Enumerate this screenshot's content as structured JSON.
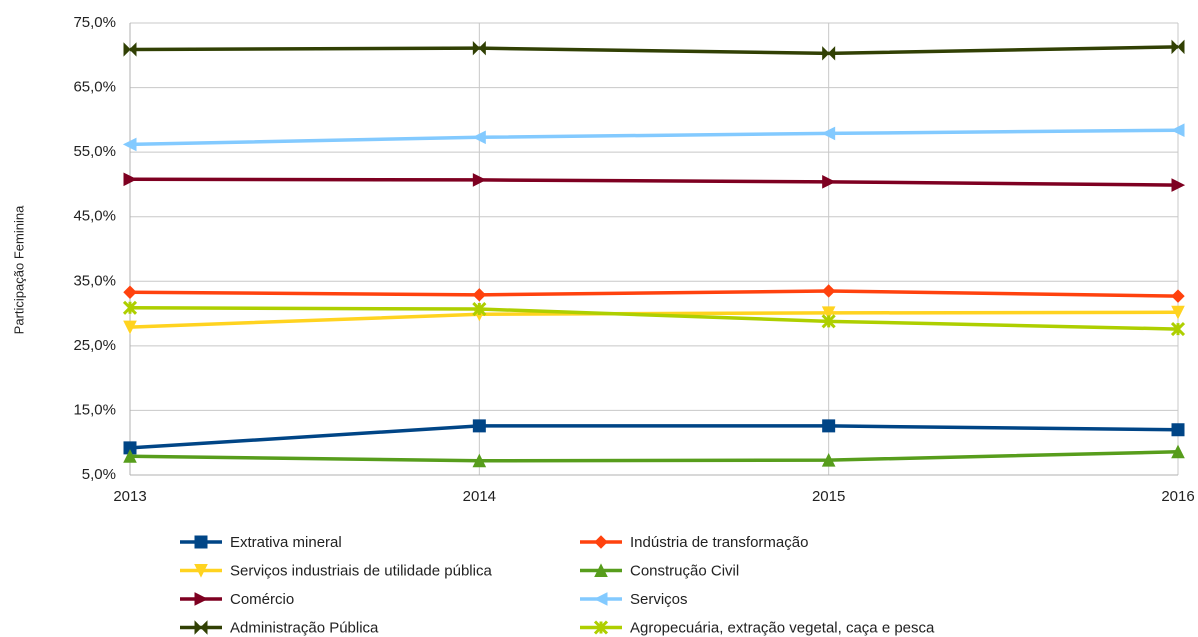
{
  "chart_data": {
    "type": "line",
    "y_label": "Participação Feminina",
    "categories": [
      "2013",
      "2014",
      "2015",
      "2016"
    ],
    "ylim": [
      5,
      75
    ],
    "yticks": [
      {
        "value": 5,
        "label": "5,0%"
      },
      {
        "value": 15,
        "label": "15,0%"
      },
      {
        "value": 25,
        "label": "25,0%"
      },
      {
        "value": 35,
        "label": "35,0%"
      },
      {
        "value": 45,
        "label": "45,0%"
      },
      {
        "value": 55,
        "label": "55,0%"
      },
      {
        "value": 65,
        "label": "65,0%"
      },
      {
        "value": 75,
        "label": "75,0%"
      }
    ],
    "grid": true,
    "legend": "bottom",
    "series": [
      {
        "name": "Extrativa mineral",
        "color": "#004586",
        "marker": "square",
        "values": [
          9.2,
          12.6,
          12.6,
          12.0
        ]
      },
      {
        "name": "Indústria de transformação",
        "color": "#ff420e",
        "marker": "diamond",
        "values": [
          33.3,
          32.9,
          33.5,
          32.7
        ]
      },
      {
        "name": "Serviços industriais de utilidade pública",
        "color": "#ffd320",
        "marker": "triangle-down",
        "values": [
          27.9,
          29.9,
          30.1,
          30.2
        ]
      },
      {
        "name": "Construção Civil",
        "color": "#579d1c",
        "marker": "triangle-up",
        "values": [
          7.9,
          7.2,
          7.3,
          8.6
        ]
      },
      {
        "name": "Comércio",
        "color": "#7e0021",
        "marker": "triangle-right",
        "values": [
          50.8,
          50.7,
          50.4,
          49.9
        ]
      },
      {
        "name": "Serviços",
        "color": "#83caff",
        "marker": "triangle-left",
        "values": [
          56.2,
          57.3,
          57.9,
          58.4
        ]
      },
      {
        "name": "Administração Pública",
        "color": "#314004",
        "marker": "bowtie",
        "values": [
          70.9,
          71.1,
          70.3,
          71.3
        ]
      },
      {
        "name": "Agropecuária, extração vegetal, caça e pesca",
        "color": "#aecf00",
        "marker": "star",
        "values": [
          30.9,
          30.7,
          28.8,
          27.6
        ]
      }
    ]
  }
}
